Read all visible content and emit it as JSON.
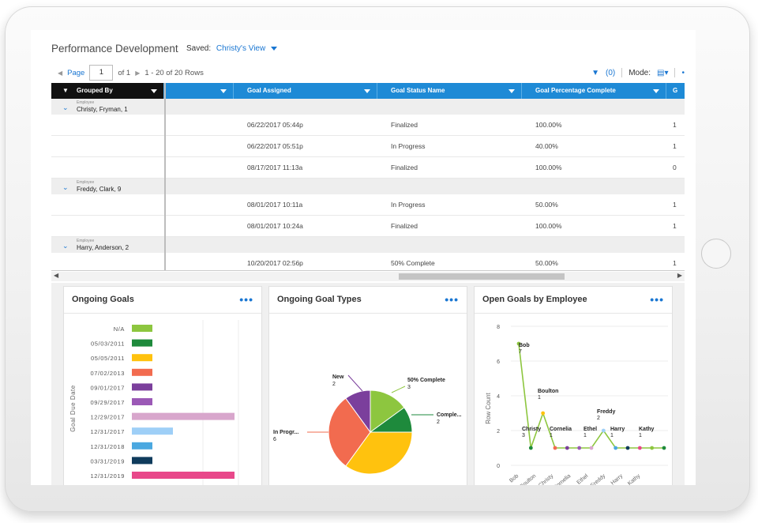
{
  "header": {
    "title": "Performance Development",
    "saved_label": "Saved:",
    "saved_view": "Christy's View"
  },
  "pager": {
    "page_label": "Page",
    "page_value": "1",
    "of": "of 1",
    "rows": "1 - 20 of 20 Rows"
  },
  "toolbar": {
    "filter_count": "(0)",
    "mode_label": "Mode:"
  },
  "grid": {
    "columns": [
      "Grouped By",
      "",
      "Goal Assigned",
      "Goal Status Name",
      "Goal Percentage Complete",
      "G"
    ],
    "groups": [
      {
        "small": "Employee",
        "name": "Christy, Fryman, 1",
        "rows": [
          {
            "assigned": "06/22/2017 05:44p",
            "status": "Finalized",
            "pct": "100.00%",
            "g": "1"
          },
          {
            "assigned": "06/22/2017 05:51p",
            "status": "In Progress",
            "pct": "40.00%",
            "g": "1"
          },
          {
            "assigned": "08/17/2017 11:13a",
            "status": "Finalized",
            "pct": "100.00%",
            "g": "0"
          }
        ]
      },
      {
        "small": "Employee",
        "name": "Freddy, Clark, 9",
        "rows": [
          {
            "assigned": "08/01/2017 10:11a",
            "status": "In Progress",
            "pct": "50.00%",
            "g": "1"
          },
          {
            "assigned": "08/01/2017 10:24a",
            "status": "Finalized",
            "pct": "100.00%",
            "g": "1"
          }
        ]
      },
      {
        "small": "Employee",
        "name": "Harry, Anderson, 2",
        "rows": [
          {
            "assigned": "10/20/2017 02:56p",
            "status": "50% Complete",
            "pct": "50.00%",
            "g": "1"
          }
        ]
      }
    ]
  },
  "panels": {
    "p1": "Ongoing Goals",
    "p2": "Ongoing Goal Types",
    "p3": "Open Goals by Employee",
    "more": "•••"
  },
  "colors": {
    "accent": "#1976d2",
    "header": "#1e8ad6"
  },
  "chart_data": [
    {
      "type": "bar",
      "orientation": "horizontal",
      "ylabel": "Goal Due Date",
      "categories": [
        "N/A",
        "05/03/2011",
        "05/05/2011",
        "07/02/2013",
        "09/01/2017",
        "09/29/2017",
        "12/29/2017",
        "12/31/2017",
        "12/31/2018",
        "03/31/2019",
        "12/31/2019"
      ],
      "values": [
        1,
        1,
        1,
        1,
        1,
        1,
        5,
        2,
        1,
        1,
        5
      ],
      "colors": [
        "#8dc63f",
        "#1e8a3c",
        "#ffc20e",
        "#f26b4f",
        "#7b3f9c",
        "#9b59b6",
        "#d8a6cc",
        "#9ecff7",
        "#4aa8e0",
        "#0f3b5c",
        "#e8488a"
      ]
    },
    {
      "type": "pie",
      "slices": [
        {
          "label": "50% Complete",
          "value": 3,
          "color": "#8dc63f"
        },
        {
          "label": "Comple...",
          "value": 2,
          "color": "#1e8a3c"
        },
        {
          "label": "",
          "value": 7,
          "color": "#ffc20e"
        },
        {
          "label": "In Progr...",
          "value": 6,
          "color": "#f26b4f"
        },
        {
          "label": "New",
          "value": 2,
          "color": "#7b3f9c"
        }
      ]
    },
    {
      "type": "line",
      "ylabel": "Row Count",
      "ylim": [
        0,
        8
      ],
      "yticks": [
        0,
        2,
        4,
        6,
        8
      ],
      "x": [
        "Bob",
        "Boulton",
        "Christy",
        "Cornelia",
        "Ethel",
        "Freddy",
        "Harry",
        "Kathy"
      ],
      "labels": [
        {
          "name": "Bob",
          "value": "7"
        },
        {
          "name": "Christy",
          "value": "3"
        },
        {
          "name": "Boulton",
          "value": "1"
        },
        {
          "name": "Cornelia",
          "value": "1"
        },
        {
          "name": "Ethel",
          "value": "1"
        },
        {
          "name": "Freddy",
          "value": "2"
        },
        {
          "name": "Harry",
          "value": "1"
        },
        {
          "name": "Kathy",
          "value": "1"
        }
      ],
      "points": [
        7,
        1,
        3,
        1,
        1,
        1,
        1,
        2,
        1,
        1,
        1,
        1,
        1
      ],
      "point_colors": [
        "#8dc63f",
        "#1e8a3c",
        "#ffc20e",
        "#f26b4f",
        "#7b3f9c",
        "#9b59b6",
        "#d8a6cc",
        "#9ecff7",
        "#4aa8e0",
        "#0f3b5c",
        "#e8488a",
        "#8dc63f",
        "#1e8a3c"
      ]
    }
  ]
}
